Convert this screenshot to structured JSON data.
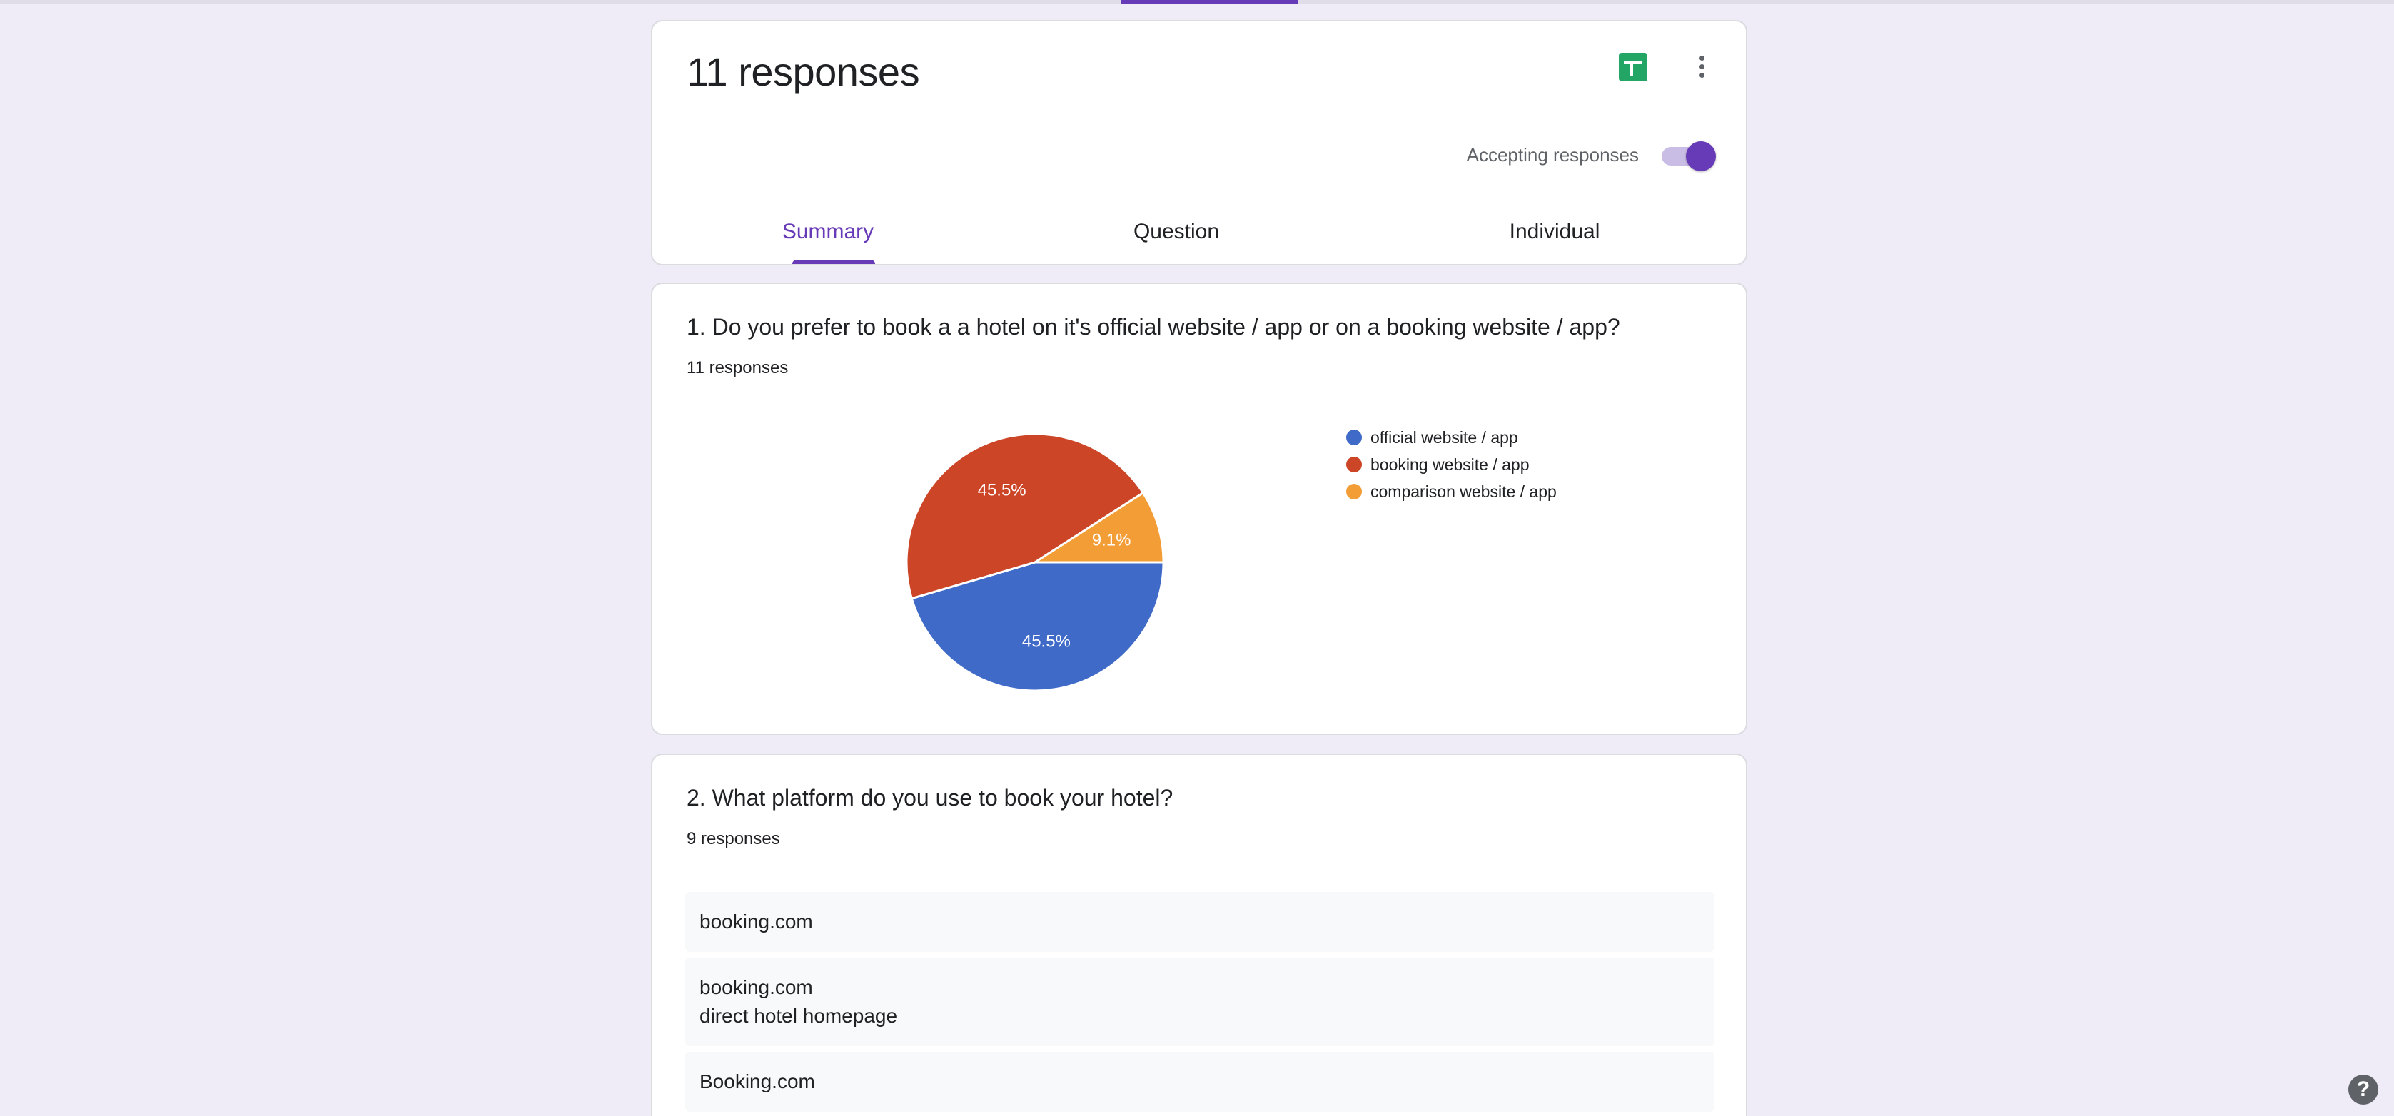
{
  "header": {
    "title": "11 responses",
    "accepting_label": "Accepting responses",
    "accepting_on": true,
    "tabs": [
      {
        "label": "Summary",
        "active": true
      },
      {
        "label": "Question",
        "active": false
      },
      {
        "label": "Individual",
        "active": false
      }
    ],
    "icons": {
      "sheets": "google-sheets-icon",
      "more": "more-vert-icon",
      "help": "help-icon"
    },
    "accent_color": "#673ab7"
  },
  "question1": {
    "title": "1. Do you prefer to book a a hotel on it's official website / app or on a booking website / app?",
    "count": "11 responses",
    "chart_data": {
      "type": "pie",
      "categories": [
        "official website / app",
        "booking website / app",
        "comparison website / app"
      ],
      "values": [
        45.5,
        45.5,
        9.1
      ],
      "labels": [
        "45.5%",
        "45.5%",
        "9.1%"
      ],
      "colors": [
        "#3f6ac8",
        "#cc4527",
        "#f29d35"
      ],
      "legend_position": "right"
    }
  },
  "question2": {
    "title": "2. What platform do you use to book your hotel?",
    "count": "9 responses",
    "responses": [
      [
        "booking.com"
      ],
      [
        "booking.com",
        "direct hotel homepage"
      ],
      [
        "Booking.com"
      ],
      [
        ""
      ]
    ]
  },
  "help": {
    "glyph": "?"
  }
}
